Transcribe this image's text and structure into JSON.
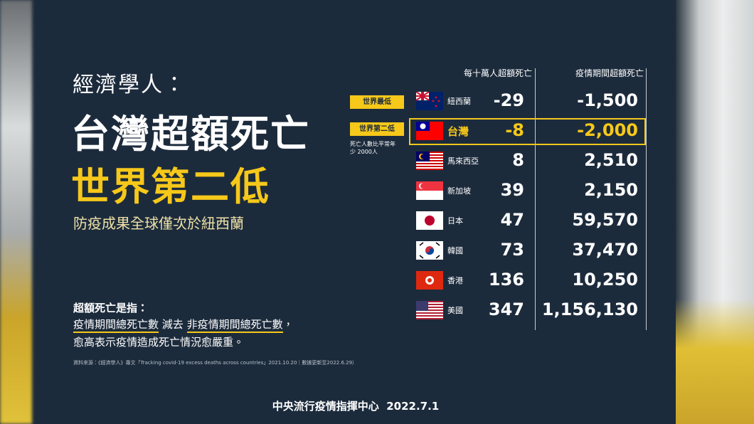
{
  "header": {
    "pre": "經濟學人：",
    "title1": "台灣超額死亡",
    "title2": "世界第二低",
    "subtitle": "防疫成果全球僅次於紐西蘭"
  },
  "badges": {
    "lowest": "世界最低",
    "second": "世界第二低",
    "note": [
      "死亡人數比平常年",
      "少 2000人"
    ]
  },
  "table": {
    "columns": [
      "每十萬人超額死亡",
      "疫情期間超額死亡"
    ],
    "rows": [
      [
        "紐西蘭",
        "-29",
        "-1,500"
      ],
      [
        "台灣",
        "-8",
        "-2,000"
      ],
      [
        "馬來西亞",
        "8",
        "2,510"
      ],
      [
        "新加坡",
        "39",
        "2,150"
      ],
      [
        "日本",
        "47",
        "59,570"
      ],
      [
        "韓國",
        "73",
        "37,470"
      ],
      [
        "香港",
        "136",
        "10,250"
      ],
      [
        "美國",
        "347",
        "1,156,130"
      ]
    ]
  },
  "definition": {
    "heading": "超額死亡是指：",
    "term1": "疫情期間總死亡數",
    "minus": "減去",
    "term2": "非疫情期間總死亡數",
    "comma": "，",
    "line2": "愈高表示疫情造成死亡情況愈嚴重。"
  },
  "source": "資料來源：《經濟學人》專文「Tracking covid-19 excess deaths across countries」2021.10.20｜數據更新至2022.6.29）",
  "footer": {
    "org": "中央流行疫情指揮中心",
    "date": "2022.7.1"
  }
}
